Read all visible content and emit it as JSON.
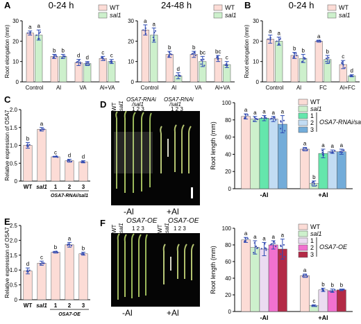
{
  "colors": {
    "wt": "#fcdcd6",
    "sal1": "#cdf0cc",
    "rnai1": "#65e6ac",
    "rnai2": "#c2dcf3",
    "rnai3": "#73acd9",
    "oe1": "#ebdbf1",
    "oe2": "#f171cf",
    "oe3": "#b32a46",
    "pink": "#fcdcd6",
    "error": "#2c4ab3",
    "points": "#3d4eb0"
  },
  "photos": {
    "d": {
      "letter": "D",
      "header_left": [
        "WT",
        "sal1",
        "OSA7-RNAi",
        "/sal1",
        "1 2 3"
      ],
      "header_right": [
        "OSA7-RNAi",
        "/sal1",
        "1 2 3"
      ],
      "cond_left": "-Al",
      "cond_right": "+Al"
    },
    "f": {
      "letter": "F",
      "oe_left": "OSA7-OE",
      "oe_right": "OSA7-OE",
      "nums": "1 2 3",
      "cond_left": "-Al",
      "cond_right": "+Al"
    }
  },
  "chart_data": [
    {
      "panel": "A",
      "type": "bar",
      "title": "0-24 h",
      "ylabel": "Root elongation (mm)",
      "ylim": [
        0,
        30
      ],
      "yticks": [
        0,
        10,
        20,
        30
      ],
      "categories": [
        "Control",
        "Al",
        "VA",
        "Al+VA"
      ],
      "legend": "top-right",
      "series": [
        {
          "name": "WT",
          "color_key": "wt",
          "values": [
            24,
            12.5,
            9.5,
            11.5
          ],
          "err": [
            1,
            1,
            1.5,
            1
          ],
          "letters": [
            "a",
            "b",
            "d",
            "c"
          ]
        },
        {
          "name": "sal1",
          "color_key": "sal1",
          "values": [
            23,
            12.5,
            9,
            10
          ],
          "err": [
            2.5,
            1,
            1,
            1
          ],
          "letters": [
            "a",
            "b",
            "d",
            "c"
          ]
        }
      ]
    },
    {
      "panel": "A2",
      "type": "bar",
      "title": "24-48 h",
      "ylabel": "",
      "ylim": [
        0,
        30
      ],
      "yticks": [
        0,
        10,
        20,
        30
      ],
      "categories": [
        "Control",
        "Al",
        "VA",
        "Al+VA"
      ],
      "legend": "top-right",
      "series": [
        {
          "name": "WT",
          "color_key": "wt",
          "values": [
            25.5,
            13.5,
            13.5,
            11.5
          ],
          "err": [
            2.5,
            1.5,
            1.5,
            1.5
          ],
          "letters": [
            "a",
            "b",
            "b",
            "bc"
          ]
        },
        {
          "name": "sal1",
          "color_key": "sal1",
          "values": [
            23,
            3,
            10,
            8.5
          ],
          "err": [
            3.5,
            1.5,
            2.5,
            1.5
          ],
          "letters": [
            "a",
            "d",
            "bc",
            "c"
          ]
        }
      ]
    },
    {
      "panel": "B",
      "type": "bar",
      "title": "0-24 h",
      "ylabel": "Root elongation (mm)",
      "ylim": [
        0,
        30
      ],
      "yticks": [
        0,
        10,
        20,
        30
      ],
      "categories": [
        "Control",
        "Al",
        "FC",
        "Al+FC"
      ],
      "legend": "top-right",
      "series": [
        {
          "name": "WT",
          "color_key": "wt",
          "values": [
            21,
            13,
            20,
            8.5
          ],
          "err": [
            2,
            1.5,
            0.5,
            2
          ],
          "letters": [
            "a",
            "b",
            "a",
            "c"
          ]
        },
        {
          "name": "sal1",
          "color_key": "sal1",
          "values": [
            20,
            11.5,
            11,
            3
          ],
          "err": [
            2,
            2,
            2,
            0.5
          ],
          "letters": [
            "a",
            "b",
            "b",
            "d"
          ]
        }
      ]
    },
    {
      "panel": "C",
      "type": "bar",
      "title": "",
      "ylabel": "Relative expression of OSA7",
      "ylim": [
        0,
        2.0
      ],
      "yticks": [
        0,
        0.5,
        1.0,
        1.5,
        2.0
      ],
      "categories": [
        "WT",
        "sal1",
        "1",
        "2",
        "3"
      ],
      "group_label": "OSA7-RNAi/sal1",
      "values": [
        1.0,
        1.45,
        0.68,
        0.57,
        0.54
      ],
      "err": [
        0.08,
        0.05,
        0.01,
        0.04,
        0.03
      ],
      "letters": [
        "b",
        "a",
        "c",
        "d",
        "d"
      ],
      "color_key": "pink"
    },
    {
      "panel": "D",
      "type": "bar",
      "title": "",
      "ylabel": "Root length (mm)",
      "ylim": [
        0,
        100
      ],
      "yticks": [
        0,
        20,
        40,
        60,
        80,
        100
      ],
      "groups": [
        "-Al",
        "+Al"
      ],
      "legend": "top-right",
      "legend_bracket": "OSA7-RNAi/sal1",
      "series": [
        {
          "name": "WT",
          "color_key": "wt",
          "values": [
            84,
            46
          ],
          "err": [
            3,
            2
          ],
          "letters": [
            "a",
            "a"
          ]
        },
        {
          "name": "sal1",
          "color_key": "sal1",
          "values": [
            81,
            6
          ],
          "err": [
            3,
            3
          ],
          "letters": [
            "a",
            "b"
          ]
        },
        {
          "name": "1",
          "color_key": "rnai1",
          "values": [
            82,
            41
          ],
          "err": [
            3,
            5
          ],
          "letters": [
            "a",
            "a"
          ]
        },
        {
          "name": "2",
          "color_key": "rnai2",
          "values": [
            81,
            43
          ],
          "err": [
            3,
            2
          ],
          "letters": [
            "a",
            "a"
          ]
        },
        {
          "name": "3",
          "color_key": "rnai3",
          "values": [
            75,
            43
          ],
          "err": [
            10,
            3
          ],
          "letters": [
            "a",
            "a"
          ]
        }
      ]
    },
    {
      "panel": "E",
      "type": "bar",
      "title": "",
      "ylabel": "Relative expression of OSA7",
      "ylim": [
        0,
        2.5
      ],
      "yticks": [
        0,
        0.5,
        1.0,
        1.5,
        2.0,
        2.5
      ],
      "categories": [
        "WT",
        "sal1",
        "1",
        "2",
        "3"
      ],
      "group_label": "OSA7-OE",
      "values": [
        0.97,
        1.23,
        1.6,
        1.85,
        1.55
      ],
      "err": [
        0.1,
        0.07,
        0.03,
        0.08,
        0.05
      ],
      "letters": [
        "d",
        "c",
        "b",
        "a",
        "b"
      ],
      "color_key": "pink"
    },
    {
      "panel": "F",
      "type": "bar",
      "title": "",
      "ylabel": "Root length (mm)",
      "ylim": [
        0,
        100
      ],
      "yticks": [
        0,
        20,
        40,
        60,
        80,
        100
      ],
      "groups": [
        "-Al",
        "+Al"
      ],
      "legend": "top-right",
      "legend_bracket": "OSA7-OE",
      "series": [
        {
          "name": "WT",
          "color_key": "wt",
          "values": [
            86,
            43
          ],
          "err": [
            3,
            2
          ],
          "letters": [
            "a",
            "a"
          ]
        },
        {
          "name": "sal1",
          "color_key": "sal1",
          "values": [
            77,
            7
          ],
          "err": [
            8,
            1
          ],
          "letters": [
            "a",
            "c"
          ]
        },
        {
          "name": "1",
          "color_key": "oe1",
          "values": [
            75,
            26
          ],
          "err": [
            8,
            2
          ],
          "letters": [
            "a",
            "b"
          ]
        },
        {
          "name": "2",
          "color_key": "oe2",
          "values": [
            80,
            25
          ],
          "err": [
            5,
            2
          ],
          "letters": [
            "a",
            "b"
          ]
        },
        {
          "name": "3",
          "color_key": "oe3",
          "values": [
            75,
            26
          ],
          "err": [
            12,
            1
          ],
          "letters": [
            "a",
            "b"
          ]
        }
      ]
    }
  ]
}
